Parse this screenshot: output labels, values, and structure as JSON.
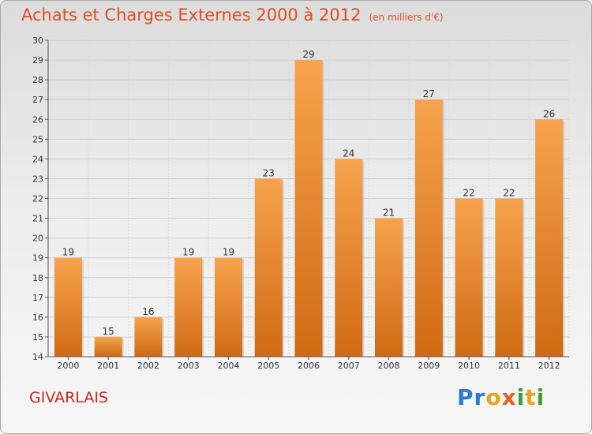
{
  "header": {
    "title": "Achats et Charges Externes 2000 à 2012",
    "subtitle": "(en milliers d'€)"
  },
  "footer": {
    "place": "GIVARLAIS",
    "logo": "Proxiti"
  },
  "colors": {
    "bar_light": "#f7a34e",
    "bar_dark": "#cf6a12",
    "title": "#e04d26",
    "place": "#c8281e"
  },
  "chart_data": {
    "type": "bar",
    "title": "Achats et Charges Externes 2000 à 2012",
    "subtitle": "(en milliers d'€)",
    "categories": [
      "2000",
      "2001",
      "2002",
      "2003",
      "2004",
      "2005",
      "2006",
      "2007",
      "2008",
      "2009",
      "2010",
      "2011",
      "2012"
    ],
    "values": [
      19,
      15,
      16,
      19,
      19,
      23,
      29,
      24,
      21,
      27,
      22,
      22,
      26
    ],
    "ylim": [
      14,
      30
    ],
    "yticks": [
      14,
      15,
      16,
      17,
      18,
      19,
      20,
      21,
      22,
      23,
      24,
      25,
      26,
      27,
      28,
      29,
      30
    ],
    "grid": true,
    "data_labels": true,
    "xlabel": "",
    "ylabel": ""
  }
}
